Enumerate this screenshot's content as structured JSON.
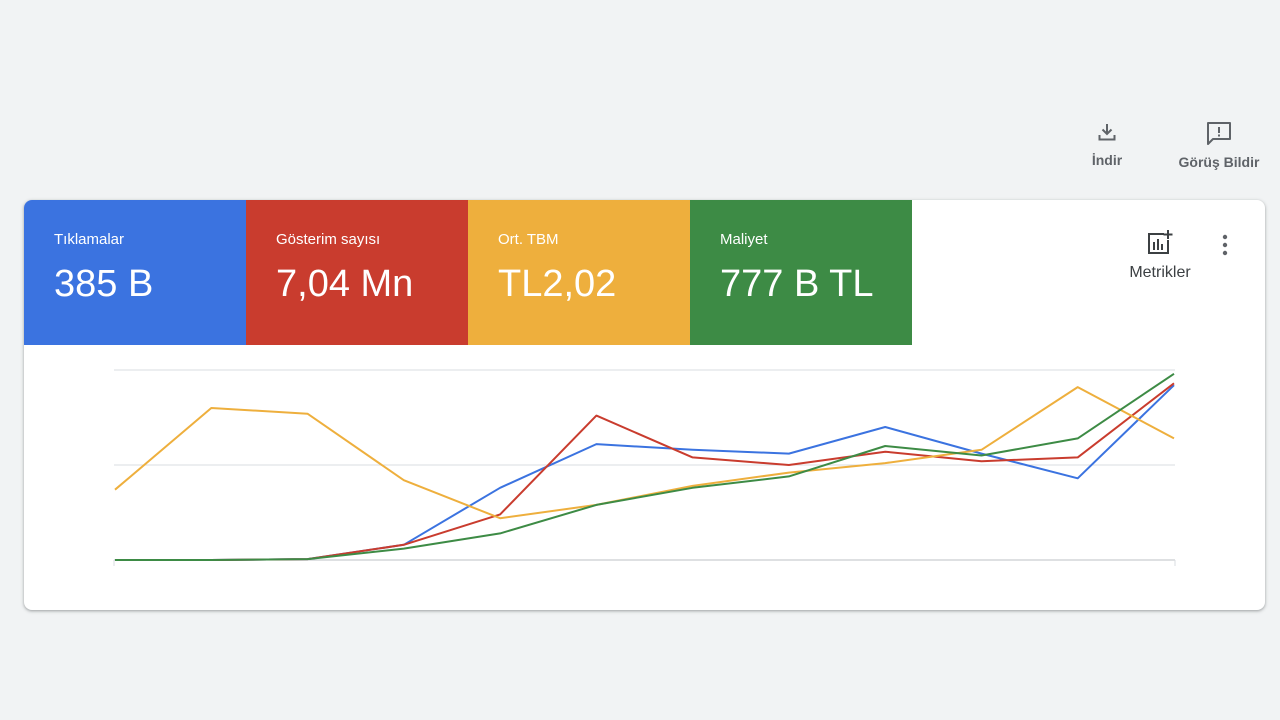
{
  "toolbar": {
    "download_label": "İndir",
    "feedback_label": "Görüş Bildir"
  },
  "tiles": [
    {
      "label": "Tıklamalar",
      "value": "385 B",
      "color": "#3b73e0"
    },
    {
      "label": "Gösterim sayısı",
      "value": "7,04 Mn",
      "color": "#c93c2e"
    },
    {
      "label": "Ort. TBM",
      "value": "TL2,02",
      "color": "#eeaf3d"
    },
    {
      "label": "Maliyet",
      "value": "777 B TL",
      "color": "#3d8b45"
    }
  ],
  "metrics_label": "Metrikler",
  "icons": {
    "download": "download-icon",
    "feedback": "feedback-icon",
    "metrics": "add-chart-icon",
    "more": "more-vert-icon"
  },
  "chart_data": {
    "type": "line",
    "x": [
      1,
      2,
      3,
      4,
      5,
      6,
      7,
      8,
      9,
      10,
      11,
      12
    ],
    "ylim": [
      0,
      100
    ],
    "grid": true,
    "series": [
      {
        "key": "clicks",
        "color": "#3b73e0",
        "values": [
          0,
          0,
          0.5,
          8,
          38,
          61,
          58,
          56,
          70,
          56,
          43,
          92
        ]
      },
      {
        "key": "impressions",
        "color": "#c93c2e",
        "values": [
          0,
          0,
          0.5,
          8,
          24,
          76,
          54,
          50,
          57,
          52,
          54,
          93
        ]
      },
      {
        "key": "avg_cpc",
        "color": "#eeaf3d",
        "values": [
          37,
          80,
          77,
          42,
          22,
          29,
          39,
          46,
          51,
          58,
          91,
          64
        ]
      },
      {
        "key": "cost",
        "color": "#3d8b45",
        "values": [
          0,
          0,
          0.5,
          6,
          14,
          29,
          38,
          44,
          60,
          55,
          64,
          98
        ]
      }
    ]
  }
}
